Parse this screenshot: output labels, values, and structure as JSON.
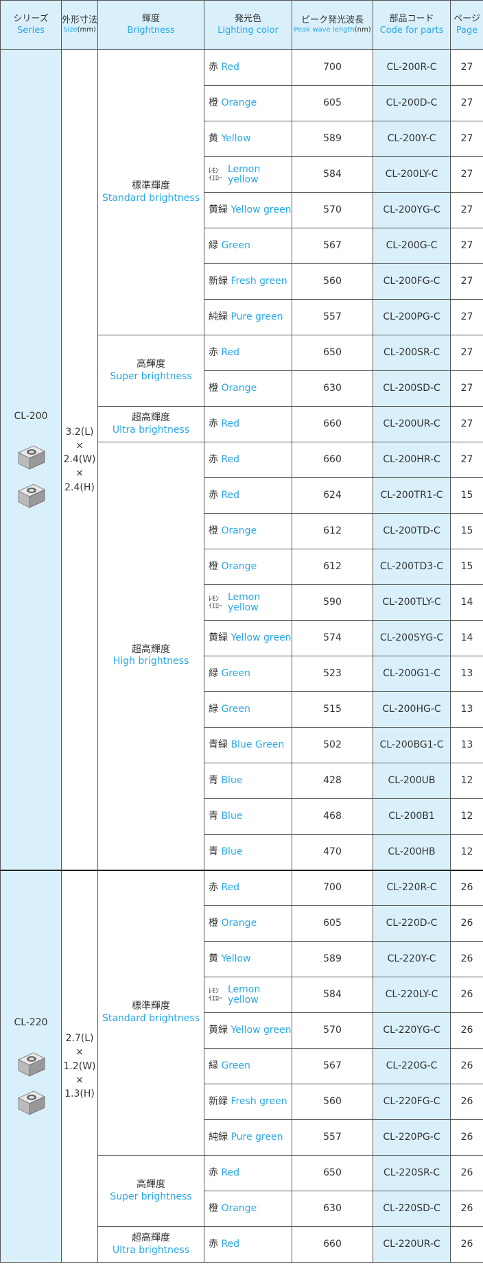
{
  "header": {
    "series_jp": "シリーズ",
    "series_en": "Series",
    "size_jp": "外形寸法",
    "size_en": "Size",
    "size_unit": "(mm)",
    "brightness_jp": "輝度",
    "brightness_en": "Brightness",
    "color_jp": "発光色",
    "color_en": "Lighting color",
    "peak_jp": "ピーク発光波長",
    "peak_en": "Peak wave length",
    "peak_unit": "(nm)",
    "code_jp": "部品コード",
    "code_en": "Code for parts",
    "page_jp": "ページ",
    "page_en": "Page"
  },
  "series": [
    {
      "name": "CL-200",
      "size": [
        "3.2(L)",
        "×",
        "2.4(W)",
        "×",
        "2.4(H)"
      ],
      "groups": [
        {
          "jp": "標準輝度",
          "en": "Standard brightness",
          "rows": [
            [
              "赤",
              "Red",
              700,
              "CL-200R-C",
              27
            ],
            [
              "橙",
              "Orange",
              605,
              "CL-200D-C",
              27
            ],
            [
              "黄",
              "Yellow",
              589,
              "CL-200Y-C",
              27
            ],
            [
              [
                "ﾚﾓﾝ",
                "ｲｴﾛｰ"
              ],
              [
                "Lemon",
                "yellow"
              ],
              584,
              "CL-200LY-C",
              27
            ],
            [
              "黄緑",
              "Yellow green",
              570,
              "CL-200YG-C",
              27
            ],
            [
              "緑",
              "Green",
              567,
              "CL-200G-C",
              27
            ],
            [
              "新緑",
              "Fresh green",
              560,
              "CL-200FG-C",
              27
            ],
            [
              "純緑",
              "Pure green",
              557,
              "CL-200PG-C",
              27
            ]
          ]
        },
        {
          "jp": "高輝度",
          "en": "Super brightness",
          "rows": [
            [
              "赤",
              "Red",
              650,
              "CL-200SR-C",
              27
            ],
            [
              "橙",
              "Orange",
              630,
              "CL-200SD-C",
              27
            ]
          ]
        },
        {
          "jp": "超高輝度",
          "en": "Ultra brightness",
          "rows": [
            [
              "赤",
              "Red",
              660,
              "CL-200UR-C",
              27
            ]
          ]
        },
        {
          "jp": "超高輝度",
          "en": "High brightness",
          "rows": [
            [
              "赤",
              "Red",
              660,
              "CL-200HR-C",
              27
            ],
            [
              "赤",
              "Red",
              624,
              "CL-200TR1-C",
              15
            ],
            [
              "橙",
              "Orange",
              612,
              "CL-200TD-C",
              15
            ],
            [
              "橙",
              "Orange",
              612,
              "CL-200TD3-C",
              15
            ],
            [
              [
                "ﾚﾓﾝ",
                "ｲｴﾛｰ"
              ],
              [
                "Lemon",
                "yellow"
              ],
              590,
              "CL-200TLY-C",
              14
            ],
            [
              "黄緑",
              "Yellow green",
              574,
              "CL-200SYG-C",
              14
            ],
            [
              "緑",
              "Green",
              523,
              "CL-200G1-C",
              13
            ],
            [
              "緑",
              "Green",
              515,
              "CL-200HG-C",
              13
            ],
            [
              "青緑",
              "Blue Green",
              502,
              "CL-200BG1-C",
              13
            ],
            [
              "青",
              "Blue",
              428,
              "CL-200UB",
              12
            ],
            [
              "青",
              "Blue",
              468,
              "CL-200B1",
              12
            ],
            [
              "青",
              "Blue",
              470,
              "CL-200HB",
              12
            ]
          ]
        }
      ]
    },
    {
      "name": "CL-220",
      "size": [
        "2.7(L)",
        "×",
        "1.2(W)",
        "×",
        "1.3(H)"
      ],
      "groups": [
        {
          "jp": "標準輝度",
          "en": "Standard brightness",
          "rows": [
            [
              "赤",
              "Red",
              700,
              "CL-220R-C",
              26
            ],
            [
              "橙",
              "Orange",
              605,
              "CL-220D-C",
              26
            ],
            [
              "黄",
              "Yellow",
              589,
              "CL-220Y-C",
              26
            ],
            [
              [
                "ﾚﾓﾝ",
                "ｲｴﾛｰ"
              ],
              [
                "Lemon",
                "yellow"
              ],
              584,
              "CL-220LY-C",
              26
            ],
            [
              "黄緑",
              "Yellow green",
              570,
              "CL-220YG-C",
              26
            ],
            [
              "緑",
              "Green",
              567,
              "CL-220G-C",
              26
            ],
            [
              "新緑",
              "Fresh green",
              560,
              "CL-220FG-C",
              26
            ],
            [
              "純緑",
              "Pure green",
              557,
              "CL-220PG-C",
              26
            ]
          ]
        },
        {
          "jp": "高輝度",
          "en": "Super brightness",
          "rows": [
            [
              "赤",
              "Red",
              650,
              "CL-220SR-C",
              26
            ],
            [
              "橙",
              "Orange",
              630,
              "CL-220SD-C",
              26
            ]
          ]
        },
        {
          "jp": "超高輝度",
          "en": "Ultra brightness",
          "rows": [
            [
              "赤",
              "Red",
              660,
              "CL-220UR-C",
              26
            ]
          ]
        }
      ]
    }
  ]
}
